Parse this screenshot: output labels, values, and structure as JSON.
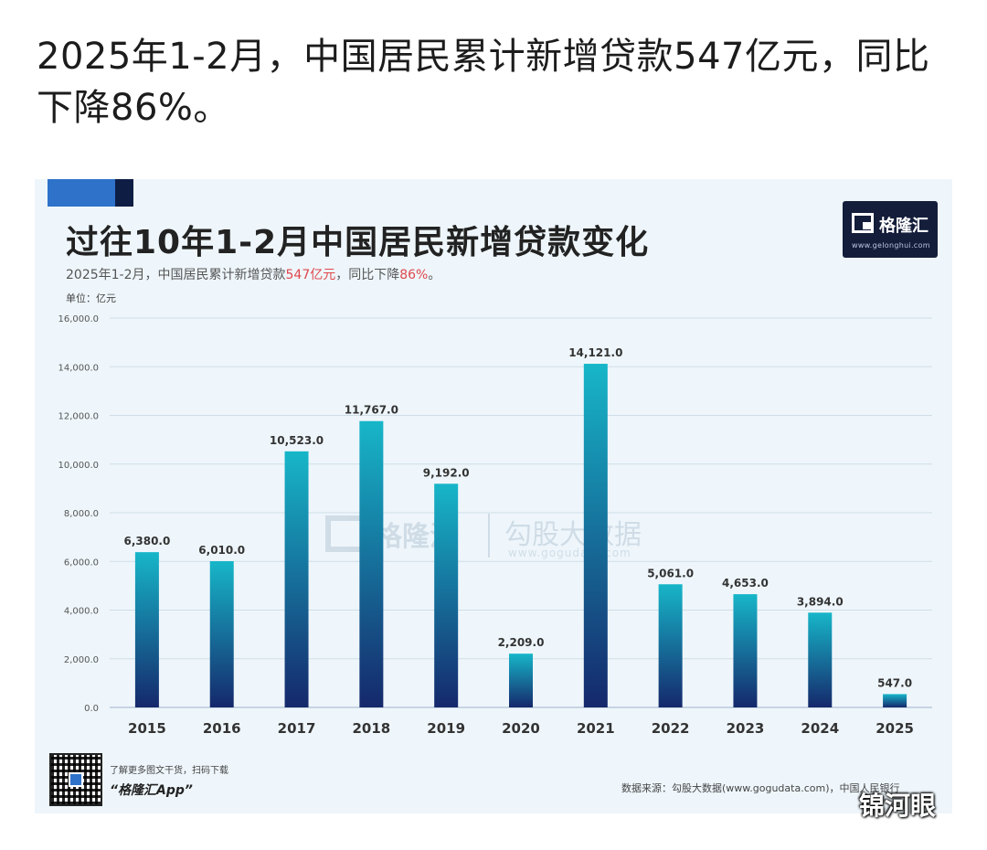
{
  "post": {
    "text": "2025年1-2月，中国居民累计新增贷款547亿元，同比下降86%。"
  },
  "card": {
    "logo_name": "格隆汇",
    "logo_url": "www.gelonghui.com",
    "unit_label": "单位：亿元",
    "watermark_brand": "格隆汇",
    "watermark_data": "勾股大数据",
    "watermark_url": "www.gogudata.com",
    "download_text": "了解更多图文干货，扫码下载",
    "app_name": "“格隆汇App”",
    "data_source": "数据来源：勾股大数据(www.gogudata.com)，中国人民银行"
  },
  "author_watermark": "锦河眼",
  "colors": {
    "bar_top": "#17b6c9",
    "bar_bottom": "#15286b",
    "highlight": "#e0474c",
    "logo_bg": "#141d3a",
    "card_bg": "#eef6fb"
  },
  "chart_data": {
    "type": "bar",
    "title": "过往10年1-2月中国居民新增贷款变化",
    "subtitle_parts": [
      "2025年1-2月，中国居民累计新增贷款",
      "547亿元",
      "，同比下降",
      "86%",
      "。"
    ],
    "categories": [
      "2015",
      "2016",
      "2017",
      "2018",
      "2019",
      "2020",
      "2021",
      "2022",
      "2023",
      "2024",
      "2025"
    ],
    "values": [
      6380,
      6010,
      10523,
      11767,
      9192,
      2209,
      14121,
      5061,
      4653,
      3894,
      547
    ],
    "value_labels": [
      "6,380.0",
      "6,010.0",
      "10,523.0",
      "11,767.0",
      "9,192.0",
      "2,209.0",
      "14,121.0",
      "5,061.0",
      "4,653.0",
      "3,894.0",
      "547.0"
    ],
    "ylabel": "亿元",
    "ylim": [
      0,
      16000
    ],
    "yticks": [
      0,
      2000,
      4000,
      6000,
      8000,
      10000,
      12000,
      14000,
      16000
    ],
    "ytick_labels": [
      "0.0",
      "2,000.0",
      "4,000.0",
      "6,000.0",
      "8,000.0",
      "10,000.0",
      "12,000.0",
      "14,000.0",
      "16,000.0"
    ],
    "grid": true,
    "legend": "none"
  }
}
